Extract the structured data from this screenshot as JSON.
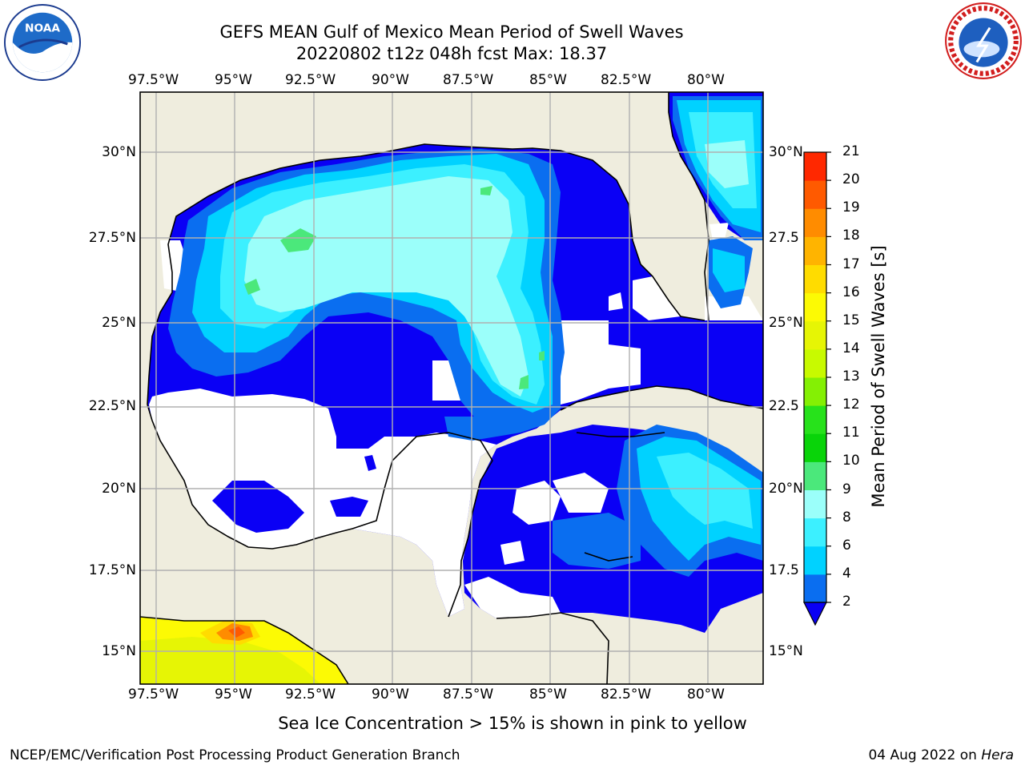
{
  "header": {
    "title_line1": "GEFS MEAN Gulf of Mexico Mean Period of Swell Waves",
    "title_line2": "20220802 t12z 048h fcst   Max: 18.37"
  },
  "logos": {
    "left": "NOAA",
    "right_text": "NATIONAL WEATHER SERVICE"
  },
  "map": {
    "lon_labels": [
      "97.5°W",
      "95°W",
      "92.5°W",
      "90°W",
      "87.5°W",
      "85°W",
      "82.5°W",
      "80°W"
    ],
    "lat_labels_left": [
      "30°N",
      "27.5°N",
      "25°N",
      "22.5°N",
      "20°N",
      "17.5°N",
      "15°N"
    ],
    "lat_labels_right": [
      "30°N",
      "27.5",
      "25°N",
      "22.5",
      "20°N",
      "17.5",
      "15°N"
    ],
    "land_color": "#efedde",
    "ocean_missing_color": "#ffffff",
    "grid_color": "#b0b0b0"
  },
  "colorbar": {
    "title": "Mean Period of Swell Waves [s]",
    "ticks": [
      "2",
      "4",
      "6",
      "8",
      "9",
      "10",
      "11",
      "12",
      "13",
      "14",
      "15",
      "16",
      "17",
      "18",
      "19",
      "20",
      "21"
    ],
    "colors": [
      "#0a6ef0",
      "#00d2ff",
      "#3cf0ff",
      "#9bfffa",
      "#4be87b",
      "#09d409",
      "#27e21b",
      "#84f004",
      "#c8fa00",
      "#e6f505",
      "#fcfa04",
      "#ffdc00",
      "#ffb400",
      "#ff8c00",
      "#ff5a00",
      "#ff2800",
      "#f00000"
    ],
    "under_color": "#0a00f5"
  },
  "note": "Sea Ice Concentration > 15% is shown in pink to yellow",
  "footer": {
    "left": "NCEP/EMC/Verification Post Processing Product Generation Branch",
    "right_prefix": "04 Aug 2022 on ",
    "right_machine": "Hera"
  }
}
